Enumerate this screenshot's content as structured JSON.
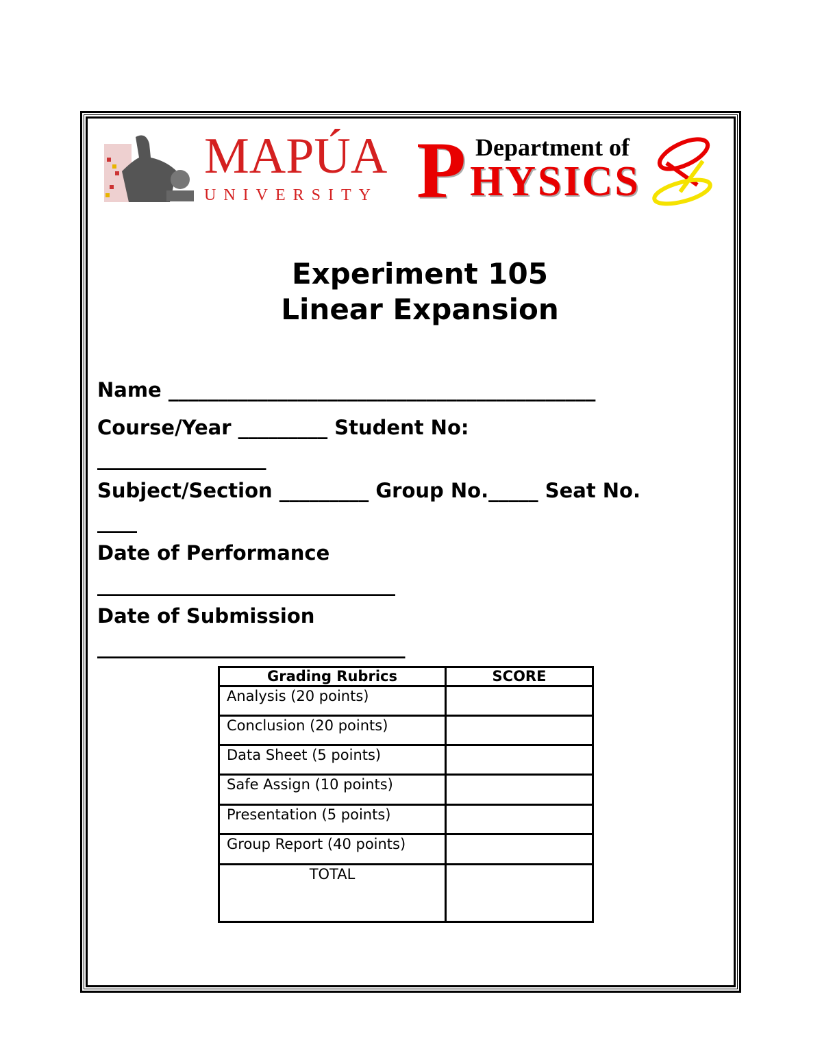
{
  "logo": {
    "university": "MAPÚA",
    "university_sub": "UNIVERSITY",
    "dept_line1": "Department of",
    "dept_initial": "P",
    "dept_rest": "HYSICS"
  },
  "title": {
    "line1": "Experiment 105",
    "line2": "Linear Expansion"
  },
  "form": {
    "name": "Name ___________________________________________",
    "course_year": "Course/Year _________ Student No:",
    "student_no_line": "_________________",
    "subject_section": "Subject/Section _________ Group No._____ Seat No.",
    "seat_no_line": "____",
    "date_performance": "Date of Performance",
    "date_performance_line": "______________________________",
    "date_submission": "Date of Submission",
    "date_submission_line": "_______________________________"
  },
  "rubrics": {
    "headers": [
      "Grading Rubrics",
      "SCORE"
    ],
    "rows": [
      "Analysis (20 points)",
      "Conclusion (20 points)",
      "Data Sheet (5 points)",
      "Safe Assign (10 points)",
      "Presentation (5 points)",
      "Group Report (40 points)"
    ],
    "total_label": "TOTAL"
  },
  "colors": {
    "brand_red": "#d42020",
    "physics_red": "#e80000",
    "ring_yellow": "#f5e200"
  }
}
